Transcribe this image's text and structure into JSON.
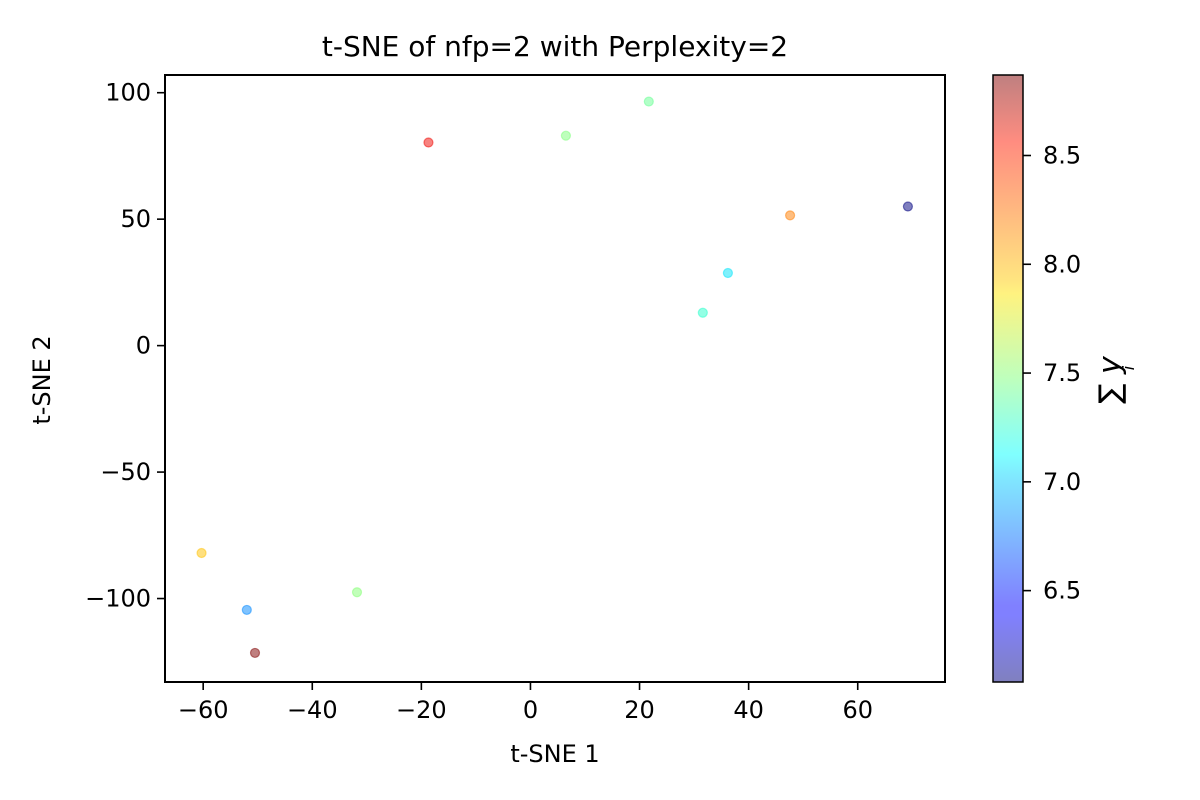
{
  "chart_data": {
    "type": "scatter",
    "title": "t-SNE of nfp=2 with Perplexity=2",
    "xlabel": "t-SNE 1",
    "ylabel": "t-SNE 2",
    "xlim": [
      -67,
      76
    ],
    "ylim": [
      -133,
      107
    ],
    "xticks": [
      -60,
      -40,
      -20,
      0,
      20,
      40,
      60
    ],
    "yticks": [
      -100,
      -50,
      0,
      50,
      100
    ],
    "xtick_labels": [
      "−60",
      "−40",
      "−20",
      "0",
      "20",
      "40",
      "60"
    ],
    "ytick_labels": [
      "−100",
      "−50",
      "0",
      "50",
      "100"
    ],
    "grid": false,
    "legend": "none",
    "point_alpha": 0.5,
    "colorbar": {
      "label": "∑ y",
      "label_subscript": "i",
      "label_superscript_sub": "i",
      "cmap": "jet",
      "range": [
        6.08,
        8.87
      ],
      "ticks": [
        6.5,
        7.0,
        7.5,
        8.0,
        8.5
      ],
      "tick_labels": [
        "6.5",
        "7.0",
        "7.5",
        "8.0",
        "8.5"
      ]
    },
    "points": [
      {
        "x": -60.3,
        "y": -82.0,
        "c": 8.05
      },
      {
        "x": -52.0,
        "y": -104.5,
        "c": 6.8
      },
      {
        "x": -50.5,
        "y": -121.5,
        "c": 8.87
      },
      {
        "x": -31.8,
        "y": -97.5,
        "c": 7.5
      },
      {
        "x": -18.7,
        "y": 80.3,
        "c": 8.6
      },
      {
        "x": 6.5,
        "y": 83.0,
        "c": 7.48
      },
      {
        "x": 21.7,
        "y": 96.5,
        "c": 7.4
      },
      {
        "x": 31.6,
        "y": 13.0,
        "c": 7.2
      },
      {
        "x": 36.2,
        "y": 28.7,
        "c": 7.05
      },
      {
        "x": 47.6,
        "y": 51.5,
        "c": 8.25
      },
      {
        "x": 69.2,
        "y": 55.0,
        "c": 6.08
      }
    ]
  }
}
